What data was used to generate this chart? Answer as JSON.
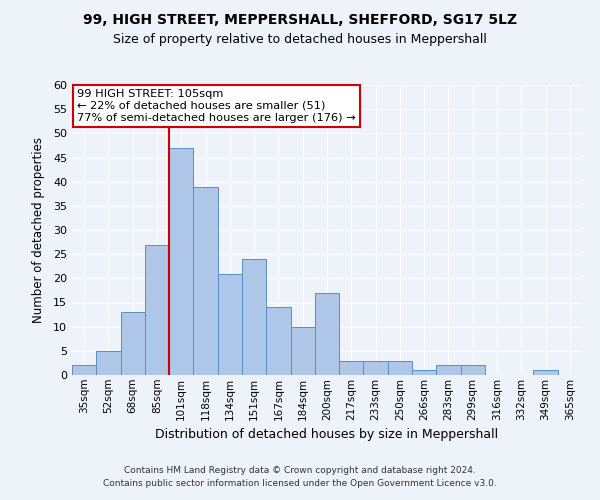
{
  "title": "99, HIGH STREET, MEPPERSHALL, SHEFFORD, SG17 5LZ",
  "subtitle": "Size of property relative to detached houses in Meppershall",
  "xlabel": "Distribution of detached houses by size in Meppershall",
  "ylabel": "Number of detached properties",
  "bar_categories": [
    "35sqm",
    "52sqm",
    "68sqm",
    "85sqm",
    "101sqm",
    "118sqm",
    "134sqm",
    "151sqm",
    "167sqm",
    "184sqm",
    "200sqm",
    "217sqm",
    "233sqm",
    "250sqm",
    "266sqm",
    "283sqm",
    "299sqm",
    "316sqm",
    "332sqm",
    "349sqm",
    "365sqm"
  ],
  "bar_values": [
    2,
    5,
    13,
    27,
    47,
    39,
    21,
    24,
    14,
    10,
    17,
    3,
    3,
    3,
    1,
    2,
    2,
    0,
    0,
    1,
    0
  ],
  "bar_color": "#aec6e8",
  "bar_edge_color": "#5a8fc2",
  "red_line_color": "#cc0000",
  "red_line_x": 3.5,
  "annotation_text": "99 HIGH STREET: 105sqm\n← 22% of detached houses are smaller (51)\n77% of semi-detached houses are larger (176) →",
  "annotation_box_color": "#ffffff",
  "annotation_box_edge": "#cc0000",
  "footer_line1": "Contains HM Land Registry data © Crown copyright and database right 2024.",
  "footer_line2": "Contains public sector information licensed under the Open Government Licence v3.0.",
  "ylim": [
    0,
    60
  ],
  "yticks": [
    0,
    5,
    10,
    15,
    20,
    25,
    30,
    35,
    40,
    45,
    50,
    55,
    60
  ],
  "bg_color": "#eef2f9",
  "grid_color": "#ffffff"
}
